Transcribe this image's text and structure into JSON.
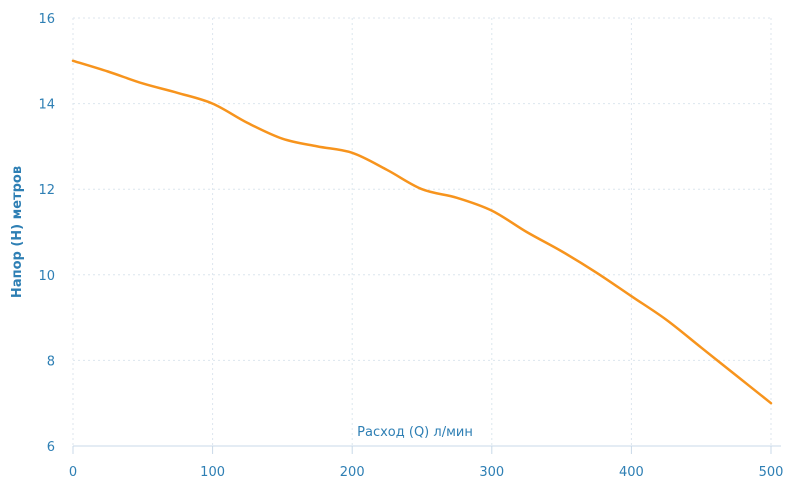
{
  "colors": {
    "line": "#F7941D",
    "text": "#2E7FB4",
    "grid": "#DCE6EE",
    "axis": "#C8D9E8"
  },
  "chart_data": {
    "type": "line",
    "title": "",
    "xlabel": "Расход (Q) л/мин",
    "ylabel": "Напор (H) метров",
    "xlim": [
      0,
      500
    ],
    "ylim": [
      6,
      16
    ],
    "xticks": [
      0,
      100,
      200,
      300,
      400,
      500
    ],
    "yticks": [
      6,
      8,
      10,
      12,
      14,
      16
    ],
    "grid": true,
    "legend": "none",
    "series": [
      {
        "x": [
          0,
          25,
          50,
          75,
          100,
          125,
          150,
          175,
          200,
          225,
          250,
          275,
          300,
          325,
          350,
          375,
          400,
          425,
          450,
          475,
          500
        ],
        "y": [
          15.0,
          14.75,
          14.47,
          14.25,
          14.0,
          13.55,
          13.18,
          13.0,
          12.85,
          12.45,
          12.0,
          11.8,
          11.5,
          11.0,
          10.55,
          10.05,
          9.5,
          8.95,
          8.3,
          7.65,
          7.0
        ]
      }
    ]
  }
}
